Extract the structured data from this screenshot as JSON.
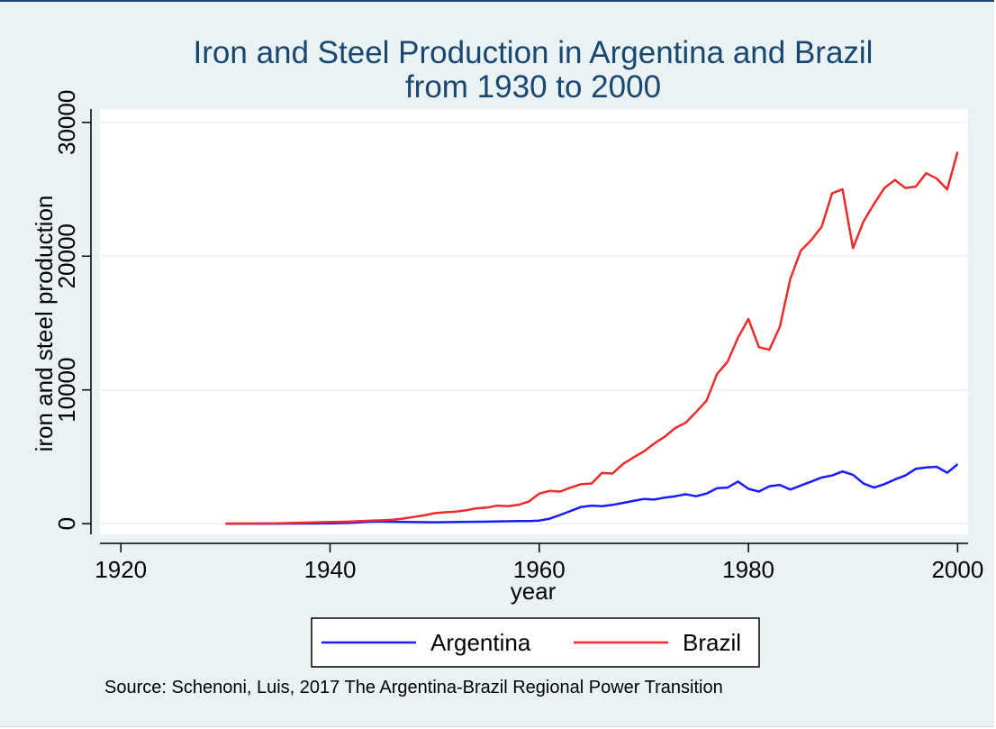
{
  "chart_data": {
    "type": "line",
    "title": "Iron and Steel Production in Argentina and Brazil",
    "subtitle": "from 1930 to 2000",
    "xlabel": "year",
    "ylabel": "iron and steel production",
    "xlim": [
      1918,
      2001
    ],
    "ylim": [
      -800,
      31000
    ],
    "xticks": [
      1920,
      1940,
      1960,
      1980,
      2000
    ],
    "yticks": [
      0,
      10000,
      20000,
      30000
    ],
    "grid": true,
    "legend_position": "bottom",
    "note": "Source: Schenoni, Luis, 2017 The Argentina-Brazil Regional Power Transition",
    "series": [
      {
        "name": "Argentina",
        "color": "#1a1aff",
        "points": [
          [
            1930,
            0
          ],
          [
            1935,
            0
          ],
          [
            1940,
            20
          ],
          [
            1942,
            70
          ],
          [
            1944,
            150
          ],
          [
            1945,
            150
          ],
          [
            1950,
            100
          ],
          [
            1955,
            150
          ],
          [
            1958,
            200
          ],
          [
            1959,
            200
          ],
          [
            1960,
            230
          ],
          [
            1961,
            370
          ],
          [
            1962,
            650
          ],
          [
            1963,
            950
          ],
          [
            1964,
            1250
          ],
          [
            1965,
            1350
          ],
          [
            1966,
            1300
          ],
          [
            1967,
            1400
          ],
          [
            1968,
            1550
          ],
          [
            1969,
            1700
          ],
          [
            1970,
            1850
          ],
          [
            1971,
            1800
          ],
          [
            1972,
            1950
          ],
          [
            1973,
            2050
          ],
          [
            1974,
            2200
          ],
          [
            1975,
            2050
          ],
          [
            1976,
            2250
          ],
          [
            1977,
            2650
          ],
          [
            1978,
            2700
          ],
          [
            1979,
            3150
          ],
          [
            1980,
            2600
          ],
          [
            1981,
            2400
          ],
          [
            1982,
            2800
          ],
          [
            1983,
            2900
          ],
          [
            1984,
            2550
          ],
          [
            1985,
            2850
          ],
          [
            1986,
            3150
          ],
          [
            1987,
            3450
          ],
          [
            1988,
            3600
          ],
          [
            1989,
            3900
          ],
          [
            1990,
            3650
          ],
          [
            1991,
            3000
          ],
          [
            1992,
            2700
          ],
          [
            1993,
            2950
          ],
          [
            1994,
            3300
          ],
          [
            1995,
            3600
          ],
          [
            1996,
            4100
          ],
          [
            1997,
            4200
          ],
          [
            1998,
            4250
          ],
          [
            1999,
            3800
          ],
          [
            2000,
            4450
          ]
        ]
      },
      {
        "name": "Brazil",
        "color": "#ee2a2a",
        "points": [
          [
            1930,
            0
          ],
          [
            1935,
            30
          ],
          [
            1940,
            120
          ],
          [
            1942,
            160
          ],
          [
            1944,
            230
          ],
          [
            1945,
            250
          ],
          [
            1946,
            300
          ],
          [
            1947,
            380
          ],
          [
            1948,
            500
          ],
          [
            1949,
            620
          ],
          [
            1950,
            780
          ],
          [
            1951,
            850
          ],
          [
            1952,
            900
          ],
          [
            1953,
            1000
          ],
          [
            1954,
            1150
          ],
          [
            1955,
            1200
          ],
          [
            1956,
            1350
          ],
          [
            1957,
            1300
          ],
          [
            1958,
            1400
          ],
          [
            1959,
            1650
          ],
          [
            1960,
            2250
          ],
          [
            1961,
            2450
          ],
          [
            1962,
            2400
          ],
          [
            1963,
            2700
          ],
          [
            1964,
            2950
          ],
          [
            1965,
            3000
          ],
          [
            1966,
            3800
          ],
          [
            1967,
            3750
          ],
          [
            1968,
            4450
          ],
          [
            1969,
            4950
          ],
          [
            1970,
            5400
          ],
          [
            1971,
            6000
          ],
          [
            1972,
            6500
          ],
          [
            1973,
            7150
          ],
          [
            1974,
            7550
          ],
          [
            1975,
            8350
          ],
          [
            1976,
            9200
          ],
          [
            1977,
            11200
          ],
          [
            1978,
            12100
          ],
          [
            1979,
            13900
          ],
          [
            1980,
            15300
          ],
          [
            1981,
            13200
          ],
          [
            1982,
            13000
          ],
          [
            1983,
            14700
          ],
          [
            1984,
            18300
          ],
          [
            1985,
            20400
          ],
          [
            1986,
            21200
          ],
          [
            1987,
            22200
          ],
          [
            1988,
            24700
          ],
          [
            1989,
            25000
          ],
          [
            1990,
            20600
          ],
          [
            1991,
            22600
          ],
          [
            1992,
            23900
          ],
          [
            1993,
            25100
          ],
          [
            1994,
            25700
          ],
          [
            1995,
            25100
          ],
          [
            1996,
            25200
          ],
          [
            1997,
            26200
          ],
          [
            1998,
            25800
          ],
          [
            1999,
            25000
          ],
          [
            2000,
            27800
          ]
        ]
      }
    ]
  }
}
